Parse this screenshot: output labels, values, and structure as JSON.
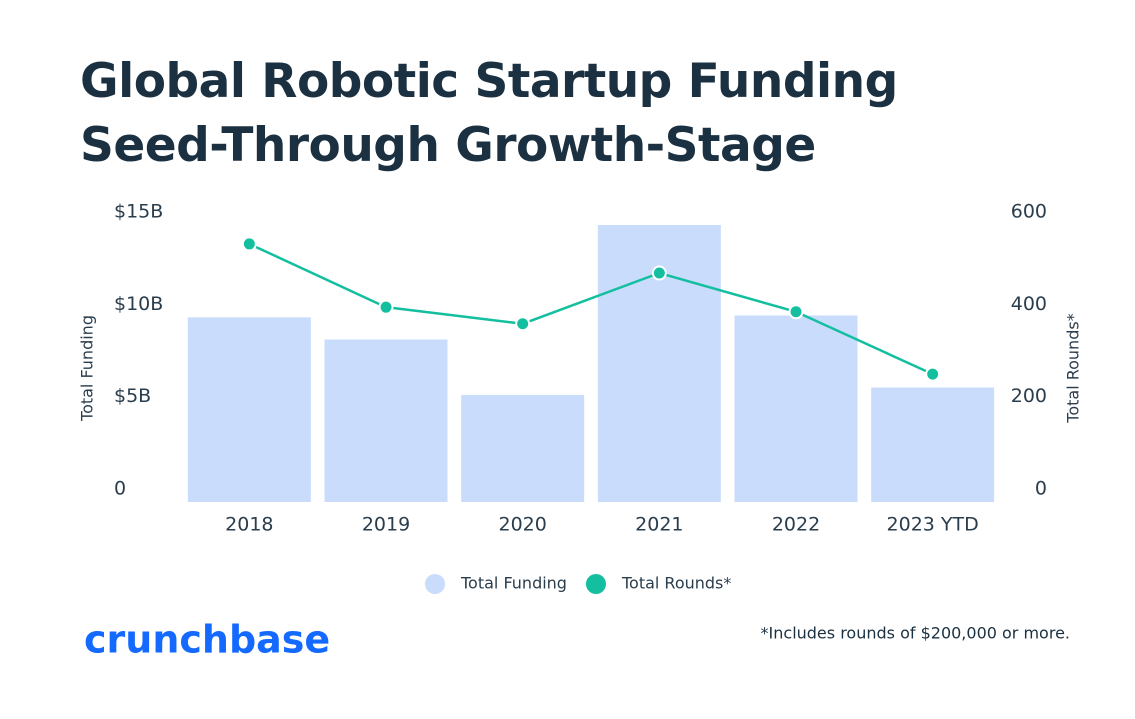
{
  "chart_data": {
    "type": "bar",
    "title": "Global Robotic Startup Funding Seed-Through Growth-Stage",
    "categories": [
      "2018",
      "2019",
      "2020",
      "2021",
      "2022",
      "2023 YTD"
    ],
    "series": [
      {
        "name": "Total Funding",
        "color": "#c9dcfc",
        "values": [
          10.0,
          8.8,
          5.8,
          15.0,
          10.1,
          6.2
        ]
      },
      {
        "name": "Total Rounds*",
        "color": "#14bfa0",
        "type": "line",
        "axis": "y2",
        "values": [
          559,
          422,
          386,
          496,
          412,
          277
        ]
      }
    ],
    "y_label": "Total Funding",
    "y2_label": "Total Rounds*",
    "ylim": [
      0,
      15
    ],
    "yticks": [
      0,
      {
        "value": 5,
        "label": "$5B"
      },
      {
        "value": 10,
        "label": "$10B"
      },
      {
        "value": 15,
        "label": "$15B"
      }
    ],
    "y2lim": [
      0,
      600
    ],
    "y2ticks": [
      0,
      200,
      400,
      600
    ],
    "footnote": "*Includes rounds of $200,000 or more.",
    "logo": "crunchbase",
    "legend": "bottom"
  }
}
